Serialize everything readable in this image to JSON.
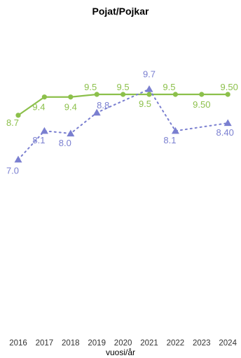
{
  "chart_data": {
    "type": "line",
    "title": "Pojat/Pojkar",
    "xlabel": "vuosi/år",
    "ylabel": "",
    "x": [
      "2016",
      "2017",
      "2018",
      "2019",
      "2020",
      "2021",
      "2022",
      "2023",
      "2024"
    ],
    "ylim": [
      0,
      12
    ],
    "grid": false,
    "series": [
      {
        "key": "green",
        "color": "#8cc04b",
        "line_style": "solid",
        "marker": "circle",
        "values": [
          8.7,
          9.4,
          9.4,
          9.5,
          9.5,
          9.5,
          9.5,
          9.5,
          9.5
        ],
        "labels": [
          "8.7",
          "9.4",
          "9.4",
          "9.5",
          "9.5",
          "9.5",
          "9.5",
          "9.50",
          "9.50"
        ]
      },
      {
        "key": "blue",
        "color": "#7a7fd0",
        "line_style": "dotted",
        "marker": "triangle",
        "values": [
          7.0,
          8.1,
          8.0,
          8.8,
          null,
          9.7,
          8.1,
          null,
          8.4
        ],
        "labels": [
          "7.0",
          "8.1",
          "8.0",
          "8.8",
          null,
          "9.7",
          "8.1",
          null,
          "8.40"
        ]
      }
    ]
  }
}
